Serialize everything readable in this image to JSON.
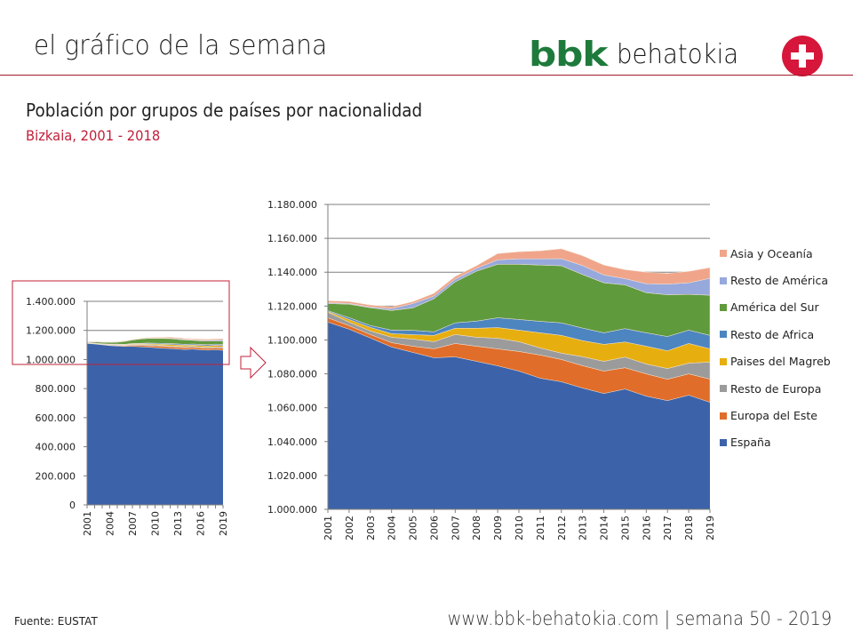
{
  "header": {
    "title": "el gráfico de la semana",
    "logo_bbk": "bbk",
    "logo_name": "behatokia"
  },
  "chart_title": "Población por grupos de países por nacionalidad",
  "chart_subtitle": "Bizkaia, 2001 - 2018",
  "footer": {
    "source": "Fuente:  EUSTAT",
    "site": "www.bbk-behatokia.com | semana 50 - 2019"
  },
  "colors": {
    "brand_red": "#c0213a",
    "brand_green": "#1e7a3b"
  },
  "chart_data": [
    {
      "type": "area",
      "stacked": true,
      "title": "Población por grupos de países por nacionalidad (vista completa)",
      "x": [
        "2001",
        "2002",
        "2003",
        "2004",
        "2005",
        "2006",
        "2007",
        "2008",
        "2009",
        "2010",
        "2011",
        "2012",
        "2013",
        "2014",
        "2015",
        "2016",
        "2017",
        "2018",
        "2019"
      ],
      "xtick_labels": [
        "2001",
        "2004",
        "2007",
        "2010",
        "2013",
        "2016",
        "2019"
      ],
      "ylim": [
        0,
        1400000
      ],
      "ytick_labels": [
        "0",
        "200.000",
        "400.000",
        "600.000",
        "800.000",
        "1.000.000",
        "1.200.000",
        "1.400.000"
      ],
      "grid": true,
      "series_ref": "same as zoomed chart"
    },
    {
      "type": "area",
      "stacked": true,
      "title": "Población por grupos de países por nacionalidad (detalle)",
      "x": [
        "2001",
        "2002",
        "2003",
        "2004",
        "2005",
        "2006",
        "2007",
        "2008",
        "2009",
        "2010",
        "2011",
        "2012",
        "2013",
        "2014",
        "2015",
        "2016",
        "2017",
        "2018",
        "2019"
      ],
      "ylim": [
        1000000,
        1180000
      ],
      "ytick_labels": [
        "1.000.000",
        "1.020.000",
        "1.040.000",
        "1.060.000",
        "1.080.000",
        "1.100.000",
        "1.120.000",
        "1.140.000",
        "1.160.000",
        "1.180.000"
      ],
      "grid": true,
      "legend_position": "right",
      "series": [
        {
          "name": "España",
          "color": "#3c63aa",
          "values": [
            1110500,
            1106300,
            1101100,
            1095800,
            1092600,
            1089500,
            1090000,
            1087400,
            1084700,
            1081600,
            1077400,
            1075300,
            1071600,
            1068400,
            1071000,
            1066800,
            1064200,
            1067400,
            1063200
          ]
        },
        {
          "name": "Europa del Este",
          "color": "#e06d2a",
          "values": [
            2600,
            2100,
            2100,
            2600,
            3700,
            5300,
            7900,
            8900,
            10000,
            11600,
            13700,
            13200,
            13200,
            13200,
            12600,
            13200,
            12600,
            12600,
            13700
          ]
        },
        {
          "name": "Resto de Europa",
          "color": "#9b9b9b",
          "values": [
            3200,
            2100,
            2100,
            3200,
            4200,
            4200,
            5300,
            5300,
            6300,
            5800,
            4200,
            3700,
            5300,
            5800,
            6300,
            5800,
            6300,
            6300,
            10000
          ]
        },
        {
          "name": "Paises del Magreb",
          "color": "#e7ae0f",
          "values": [
            500,
            1600,
            2100,
            2100,
            2600,
            3700,
            3700,
            5300,
            6300,
            6800,
            8900,
            10500,
            9500,
            10000,
            8900,
            10500,
            10500,
            11600,
            7900
          ]
        },
        {
          "name": "Resto de Africa",
          "color": "#4c85c0",
          "values": [
            500,
            1100,
            1100,
            2100,
            2600,
            2100,
            3200,
            4200,
            5800,
            6300,
            6800,
            7400,
            7400,
            6800,
            7900,
            7900,
            8400,
            7900,
            7900
          ]
        },
        {
          "name": "América del Sur",
          "color": "#5f9a3d",
          "values": [
            4200,
            7900,
            10500,
            11600,
            13200,
            19500,
            24200,
            29500,
            31600,
            32600,
            33200,
            33700,
            31600,
            29500,
            25800,
            23700,
            24700,
            21100,
            23700
          ]
        },
        {
          "name": "Resto de América",
          "color": "#97a9dc",
          "values": [
            500,
            500,
            500,
            1100,
            2600,
            1600,
            1600,
            1600,
            2600,
            3200,
            3700,
            4200,
            5300,
            4700,
            3700,
            5300,
            6300,
            6800,
            10000
          ]
        },
        {
          "name": "Asia y Oceanía",
          "color": "#f0a58a",
          "values": [
            1100,
            1100,
            1100,
            1100,
            1100,
            1600,
            1600,
            1600,
            3700,
            4200,
            4700,
            5800,
            5800,
            5800,
            5300,
            6800,
            6300,
            6800,
            6300
          ]
        }
      ],
      "legend": [
        "Asia y Oceanía",
        "Resto de América",
        "América del Sur",
        "Resto de Africa",
        "Paises del Magreb",
        "Resto de Europa",
        "Europa del Este",
        "España"
      ]
    }
  ]
}
